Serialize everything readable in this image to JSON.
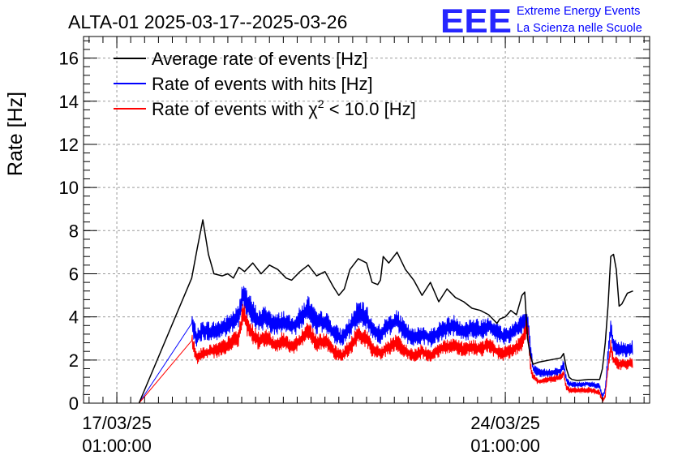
{
  "header": {
    "title": "ALTA-01 2025-03-17--2025-03-26",
    "logo_text": "EEE",
    "logo_line1": "Extreme Energy Events",
    "logo_line2": "La Scienza nelle Scuole"
  },
  "colors": {
    "average": "#000000",
    "hits": "#0000ff",
    "chi2": "#ff0000",
    "logo": "#0000ff",
    "grid": "#9a9a9a"
  },
  "chart_data": {
    "type": "line",
    "title": "ALTA-01 2025-03-17--2025-03-26",
    "ylabel": "Rate [Hz]",
    "xlabel": "",
    "xlim_days": [
      -0.6,
      9.6
    ],
    "ylim": [
      0,
      17
    ],
    "grid": true,
    "legend_position": "top-left",
    "x_ticks": [
      {
        "day": 0,
        "line1": "17/03/25",
        "line2": "01:00:00"
      },
      {
        "day": 7,
        "line1": "24/03/25",
        "line2": "01:00:00"
      }
    ],
    "y_ticks": [
      0,
      2,
      4,
      6,
      8,
      10,
      12,
      14,
      16
    ],
    "legend": [
      {
        "key": "average",
        "label": "Average rate of events [Hz]"
      },
      {
        "key": "hits",
        "label": "Rate of events with hits [Hz]"
      },
      {
        "key": "chi2",
        "label_pre": "Rate of events with ",
        "label_sym": "χ",
        "label_sup": "2",
        "label_post": " < 10.0 [Hz]"
      }
    ],
    "series": [
      {
        "name": "Average rate of events [Hz]",
        "key": "average",
        "x": [
          0.4,
          1.35,
          1.45,
          1.55,
          1.65,
          1.75,
          1.9,
          2.0,
          2.1,
          2.2,
          2.3,
          2.45,
          2.6,
          2.75,
          2.9,
          3.05,
          3.15,
          3.3,
          3.45,
          3.6,
          3.75,
          3.9,
          4.0,
          4.1,
          4.2,
          4.35,
          4.5,
          4.6,
          4.7,
          4.75,
          4.8,
          4.9,
          5.05,
          5.2,
          5.35,
          5.5,
          5.65,
          5.8,
          5.95,
          6.1,
          6.25,
          6.4,
          6.55,
          6.7,
          6.85,
          6.9,
          7.0,
          7.1,
          7.2,
          7.3,
          7.35,
          7.4,
          7.45,
          7.5,
          7.6,
          7.8,
          8.0,
          8.05,
          8.1,
          8.15,
          8.2,
          8.3,
          8.5,
          8.7,
          8.75,
          8.8,
          8.85,
          8.9,
          8.95,
          9.0,
          9.05,
          9.1,
          9.2,
          9.3
        ],
        "values": [
          0,
          5.8,
          7.2,
          8.5,
          6.9,
          6.0,
          5.9,
          6.0,
          5.8,
          6.3,
          6.1,
          6.5,
          6.0,
          6.4,
          6.2,
          5.8,
          5.7,
          6.1,
          6.4,
          5.9,
          6.1,
          5.4,
          5.0,
          5.3,
          6.2,
          6.7,
          6.5,
          5.6,
          5.5,
          5.7,
          6.8,
          6.5,
          7.0,
          6.2,
          5.7,
          5.0,
          5.6,
          4.7,
          5.3,
          4.9,
          4.7,
          4.4,
          4.3,
          4.1,
          3.7,
          3.9,
          4.0,
          4.3,
          4.1,
          5.0,
          5.15,
          3.0,
          2.2,
          1.8,
          1.9,
          2.0,
          2.1,
          2.3,
          1.6,
          1.2,
          1.1,
          1.05,
          1.1,
          1.1,
          1.6,
          2.8,
          4.5,
          6.8,
          6.9,
          6.2,
          4.5,
          4.6,
          5.1,
          5.2
        ]
      },
      {
        "name": "Rate of events with hits [Hz]",
        "key": "hits",
        "x": [
          0.4,
          1.35,
          1.45,
          1.55,
          1.7,
          1.85,
          2.0,
          2.1,
          2.2,
          2.28,
          2.35,
          2.45,
          2.55,
          2.7,
          2.85,
          3.0,
          3.15,
          3.3,
          3.45,
          3.6,
          3.75,
          3.9,
          4.05,
          4.2,
          4.35,
          4.5,
          4.6,
          4.75,
          4.9,
          5.05,
          5.2,
          5.35,
          5.5,
          5.65,
          5.8,
          5.95,
          6.1,
          6.25,
          6.4,
          6.55,
          6.7,
          6.85,
          6.95,
          7.1,
          7.3,
          7.4,
          7.45,
          7.5,
          7.6,
          7.8,
          8.0,
          8.05,
          8.1,
          8.15,
          8.3,
          8.5,
          8.7,
          8.75,
          8.8,
          8.85,
          8.9,
          8.95,
          9.05,
          9.2,
          9.3
        ],
        "values": [
          0,
          3.7,
          3.0,
          3.4,
          3.3,
          3.4,
          3.6,
          3.8,
          4.0,
          5.2,
          4.6,
          4.2,
          3.8,
          4.0,
          3.6,
          3.8,
          3.5,
          3.9,
          4.4,
          3.7,
          3.8,
          3.3,
          3.0,
          3.5,
          4.2,
          4.0,
          3.4,
          3.2,
          3.6,
          3.8,
          3.3,
          3.0,
          3.2,
          3.0,
          3.3,
          3.5,
          3.6,
          3.3,
          3.5,
          3.4,
          3.6,
          3.3,
          3.1,
          3.2,
          3.7,
          3.8,
          2.6,
          1.6,
          1.4,
          1.4,
          1.5,
          1.8,
          1.1,
          0.9,
          0.85,
          0.9,
          0.8,
          0.3,
          0.6,
          2.2,
          3.5,
          2.7,
          2.5,
          2.5,
          2.6
        ]
      },
      {
        "name": "Rate of events with χ2 < 10.0 [Hz]",
        "key": "chi2",
        "x": [
          0.4,
          1.35,
          1.45,
          1.55,
          1.7,
          1.85,
          2.0,
          2.1,
          2.2,
          2.28,
          2.35,
          2.45,
          2.55,
          2.7,
          2.85,
          3.0,
          3.15,
          3.3,
          3.45,
          3.6,
          3.75,
          3.9,
          4.05,
          4.2,
          4.35,
          4.5,
          4.6,
          4.75,
          4.9,
          5.05,
          5.2,
          5.35,
          5.5,
          5.65,
          5.8,
          5.95,
          6.1,
          6.25,
          6.4,
          6.55,
          6.7,
          6.85,
          6.95,
          7.1,
          7.3,
          7.4,
          7.45,
          7.5,
          7.6,
          7.8,
          8.0,
          8.05,
          8.1,
          8.15,
          8.3,
          8.5,
          8.7,
          8.75,
          8.8,
          8.85,
          8.9,
          8.95,
          9.05,
          9.2,
          9.3
        ],
        "values": [
          0,
          2.9,
          2.1,
          2.3,
          2.4,
          2.5,
          2.7,
          2.9,
          3.1,
          4.2,
          3.6,
          3.2,
          2.9,
          3.0,
          2.7,
          2.9,
          2.6,
          2.9,
          3.4,
          2.8,
          2.9,
          2.4,
          2.2,
          2.6,
          3.2,
          3.0,
          2.5,
          2.3,
          2.6,
          2.8,
          2.4,
          2.2,
          2.4,
          2.2,
          2.5,
          2.6,
          2.7,
          2.5,
          2.6,
          2.5,
          2.7,
          2.4,
          2.3,
          2.4,
          2.8,
          3.6,
          1.8,
          1.2,
          1.0,
          1.1,
          1.2,
          1.4,
          0.7,
          0.6,
          0.6,
          0.6,
          0.5,
          0.1,
          0.3,
          1.6,
          2.6,
          2.0,
          1.8,
          1.8,
          1.9
        ]
      }
    ]
  }
}
